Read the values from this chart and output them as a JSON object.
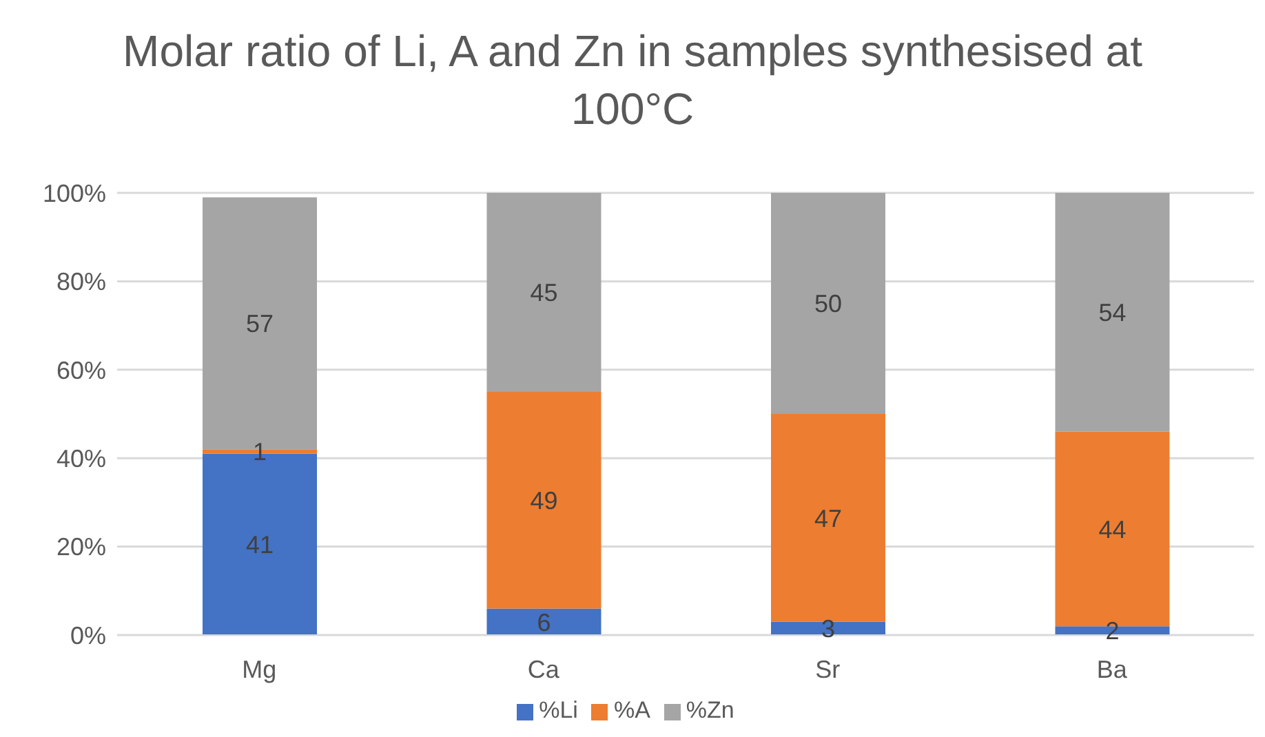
{
  "chart_data": {
    "type": "bar",
    "title": "Molar ratio of Li, A and Zn in samples synthesised at 100°C",
    "categories": [
      "Mg",
      "Ca",
      "Sr",
      "Ba"
    ],
    "series": [
      {
        "name": "%Li",
        "color": "#4472c4",
        "values": [
          41,
          6,
          3,
          2
        ]
      },
      {
        "name": "%A",
        "color": "#ed7d31",
        "values": [
          1,
          49,
          47,
          44
        ]
      },
      {
        "name": "%Zn",
        "color": "#a5a5a5",
        "values": [
          57,
          45,
          50,
          54
        ]
      }
    ],
    "stacked": true,
    "data_labels": true,
    "grid": "y",
    "legend": "bottom",
    "ylim": [
      0,
      100
    ],
    "yticks": [
      {
        "value": 0,
        "label": "0%"
      },
      {
        "value": 20,
        "label": "20%"
      },
      {
        "value": 40,
        "label": "40%"
      },
      {
        "value": 60,
        "label": "60%"
      },
      {
        "value": 80,
        "label": "80%"
      },
      {
        "value": 100,
        "label": "100%"
      }
    ]
  }
}
